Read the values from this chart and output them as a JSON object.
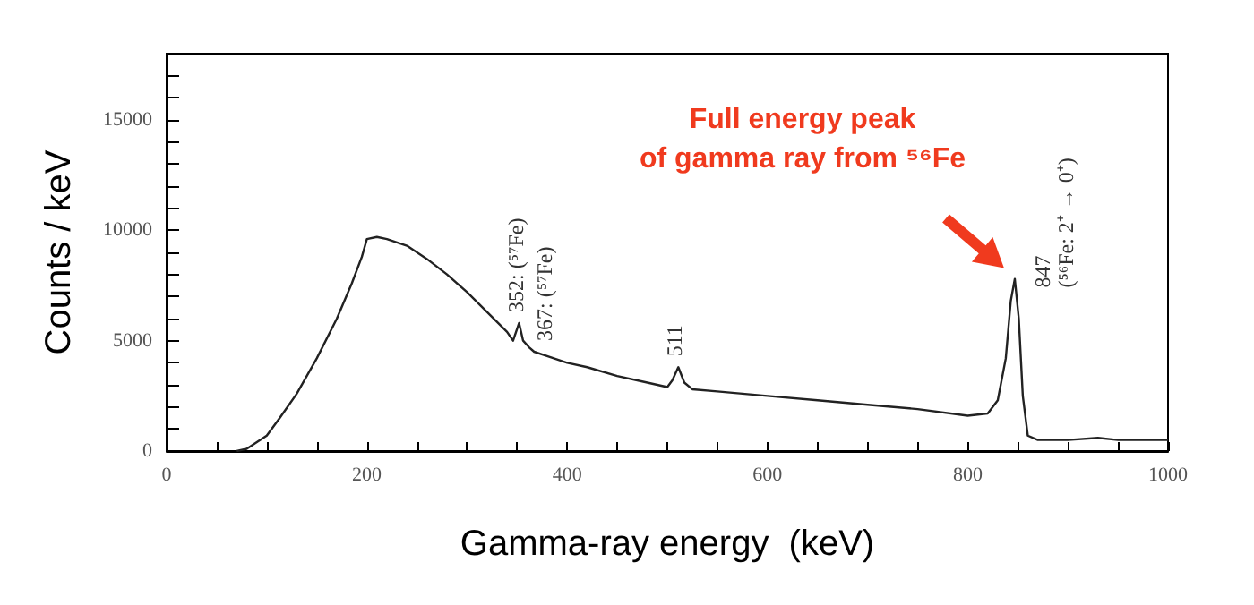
{
  "chart_data": {
    "type": "line",
    "xlabel": "Gamma-ray energy  (keV)",
    "ylabel": "Counts / keV",
    "x": [
      70,
      80,
      100,
      113,
      130,
      150,
      170,
      185,
      195,
      200,
      210,
      220,
      240,
      260,
      280,
      300,
      320,
      340,
      346,
      352,
      356,
      362,
      367,
      380,
      400,
      420,
      450,
      480,
      500,
      505,
      511,
      517,
      525,
      550,
      600,
      650,
      700,
      750,
      800,
      820,
      830,
      838,
      843,
      847,
      851,
      855,
      860,
      870,
      900,
      930,
      950,
      1000
    ],
    "series": [
      {
        "color": "#222222",
        "values": [
          0,
          100,
          700,
          1500,
          2600,
          4200,
          6000,
          7600,
          8800,
          9600,
          9700,
          9600,
          9300,
          8700,
          8000,
          7200,
          6300,
          5400,
          5000,
          5800,
          5000,
          4700,
          4500,
          4300,
          4000,
          3800,
          3400,
          3100,
          2900,
          3200,
          3800,
          3100,
          2800,
          2700,
          2500,
          2300,
          2100,
          1900,
          1600,
          1700,
          2300,
          4200,
          6800,
          7800,
          6000,
          2500,
          700,
          500,
          500,
          600,
          500,
          500
        ]
      }
    ],
    "xlim": [
      0,
      1000
    ],
    "xticks": [
      0,
      {
        "value": 50,
        "label": null
      },
      {
        "value": 100,
        "label": null
      },
      {
        "value": 150,
        "label": null
      },
      200,
      {
        "value": 250,
        "label": null
      },
      {
        "value": 300,
        "label": null
      },
      {
        "value": 350,
        "label": null
      },
      400,
      {
        "value": 450,
        "label": null
      },
      {
        "value": 500,
        "label": null
      },
      {
        "value": 550,
        "label": null
      },
      600,
      {
        "value": 650,
        "label": null
      },
      {
        "value": 700,
        "label": null
      },
      {
        "value": 750,
        "label": null
      },
      800,
      {
        "value": 850,
        "label": null
      },
      {
        "value": 900,
        "label": null
      },
      {
        "value": 950,
        "label": null
      },
      1000
    ],
    "ylim": [
      0,
      18000
    ],
    "yticks": [
      0,
      {
        "value": 1000,
        "label": null
      },
      {
        "value": 2000,
        "label": null
      },
      {
        "value": 3000,
        "label": null
      },
      {
        "value": 4000,
        "label": null
      },
      5000,
      {
        "value": 6000,
        "label": null
      },
      {
        "value": 7000,
        "label": null
      },
      {
        "value": 8000,
        "label": null
      },
      {
        "value": 9000,
        "label": null
      },
      10000,
      {
        "value": 11000,
        "label": null
      },
      {
        "value": 12000,
        "label": null
      },
      {
        "value": 13000,
        "label": null
      },
      {
        "value": 14000,
        "label": null
      },
      15000,
      {
        "value": 16000,
        "label": null
      },
      {
        "value": 17000,
        "label": null
      },
      {
        "value": 18000,
        "label": null
      }
    ],
    "annotations": [
      {
        "text": "352: (⁵⁷Fe)",
        "x": 352,
        "y": 5800
      },
      {
        "text": "367: (⁵⁷Fe)",
        "x": 367,
        "y": 4500
      },
      {
        "text": "511",
        "x": 511,
        "y": 3800
      },
      {
        "text": "847\n(⁵⁶Fe: 2⁺ → 0⁺)",
        "x": 847,
        "y": 7800
      },
      "Full energy peak\nof gamma ray from ⁵⁶Fe"
    ],
    "grid": false,
    "marker": "none",
    "line_style": "solid"
  }
}
